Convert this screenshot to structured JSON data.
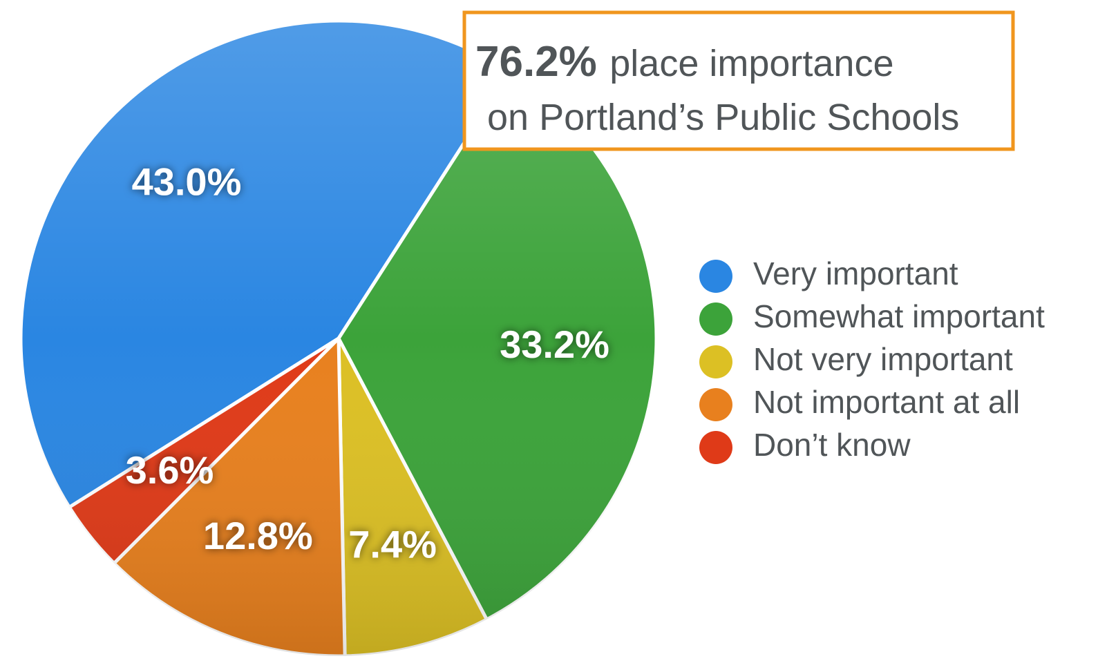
{
  "chart_data": {
    "type": "pie",
    "categories": [
      "Very important",
      "Somewhat important",
      "Not very important",
      "Not important at all",
      "Don’t know"
    ],
    "values": [
      43.0,
      33.2,
      7.4,
      12.8,
      3.6
    ],
    "value_labels": [
      "43.0%",
      "33.2%",
      "7.4%",
      "12.8%",
      "3.6%"
    ],
    "colors": [
      "#2a86e2",
      "#3ca33a",
      "#dcc024",
      "#e8801e",
      "#df3a18"
    ],
    "annotation": {
      "highlight": "76.2%",
      "line_1": "place importance",
      "line_2": "on Portland’s Public Schools"
    },
    "legend": "right"
  }
}
